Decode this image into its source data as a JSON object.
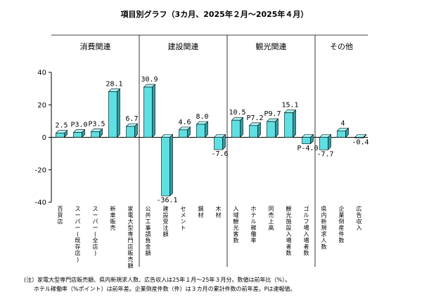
{
  "chart_data": {
    "type": "bar",
    "title": "項目別グラフ（3カ月、2025年２月～2025年４月）",
    "ylim": [
      -40,
      40
    ],
    "yticks": [
      40,
      20,
      0,
      -20,
      -40
    ],
    "grid": false,
    "groups": [
      {
        "label": "消費関連",
        "start": 0,
        "end": 5
      },
      {
        "label": "建設関連",
        "start": 5,
        "end": 10
      },
      {
        "label": "観光関連",
        "start": 10,
        "end": 15
      },
      {
        "label": "その他",
        "start": 15,
        "end": 18
      }
    ],
    "categories": [
      "百貨店",
      "スーパー(既存店)",
      "スーパー(全店)",
      "新車販売",
      "家電大型専門店販売額",
      "公共工事請負金額",
      "建設受注額",
      "セメント",
      "鋼材",
      "木材",
      "入域観光客数",
      "ホテル稼働率",
      "同売上高",
      "観光施設入場者数",
      "ゴルフ場入場者数",
      "県内新規求人数",
      "企業倒産件数",
      "広告収入"
    ],
    "values": [
      2.5,
      3.0,
      3.5,
      28.1,
      6.7,
      30.9,
      -36.1,
      4.6,
      8.0,
      -7.6,
      10.5,
      7.2,
      9.7,
      15.1,
      -4.0,
      -7.7,
      4,
      -0.4
    ],
    "data_labels": [
      "2.5",
      "P3.0",
      "P3.5",
      "28.1",
      "6.7",
      "30.9",
      "-36.1",
      "4.6",
      "8.0",
      "-7.6",
      "10.5",
      "P7.2",
      "P9.7",
      "15.1",
      "P-4.0",
      "-7.7",
      "4",
      "-0.4"
    ],
    "colors": {
      "bar_front": "#5EE0E3",
      "bar_side": "#2E9EA3",
      "bar_top": "#A8F0F2",
      "axis": "#000000"
    }
  },
  "notes": [
    "(注）家電大型専門店販売額、県内新規求人数、広告収入は25年１月～25年３月分。数値は前年比（%）。",
    "ホテル稼働率（%ポイント）は前年差。企業倒産件数（件）は３カ月の累計件数の前年差。Pは速報値。"
  ]
}
